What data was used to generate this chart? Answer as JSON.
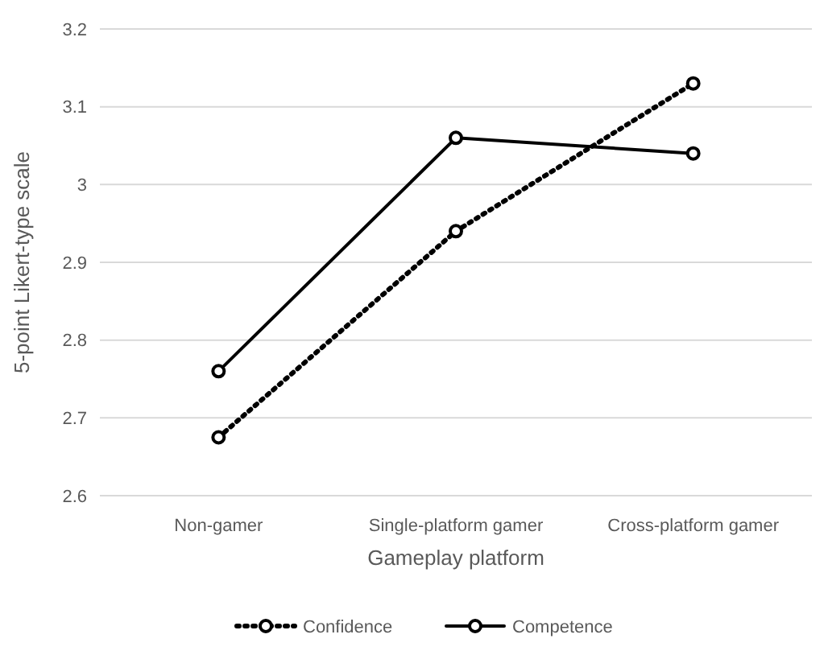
{
  "chart_data": {
    "type": "line",
    "xlabel": "Gameplay platform",
    "ylabel": "5-point Likert-type scale",
    "categories": [
      "Non-gamer",
      "Single-platform gamer",
      "Cross-platform gamer"
    ],
    "series": [
      {
        "name": "Confidence",
        "color": "#000000",
        "values": [
          2.675,
          2.94,
          3.13
        ],
        "line_style": "dotted"
      },
      {
        "name": "Competence",
        "color": "#000000",
        "values": [
          2.76,
          3.06,
          3.04
        ],
        "line_style": "solid"
      }
    ],
    "ylim": [
      2.6,
      3.2
    ],
    "yticks": [
      2.6,
      2.7,
      2.8,
      2.9,
      3,
      3.1,
      3.2
    ],
    "grid": "y",
    "legend": "bottom",
    "marker": "circle"
  }
}
